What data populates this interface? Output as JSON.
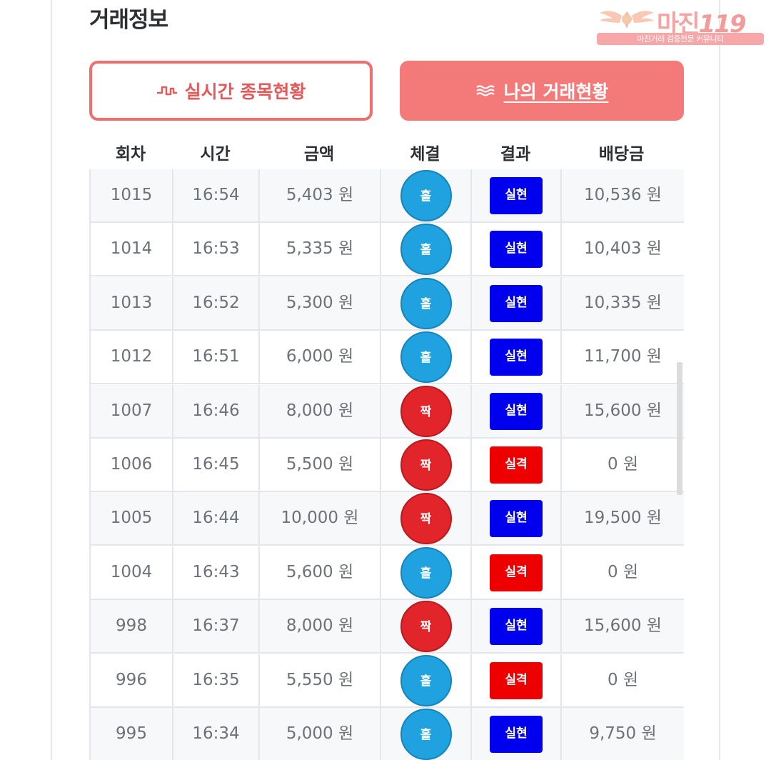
{
  "page": {
    "title": "거래정보"
  },
  "logo": {
    "brand_text": "마진",
    "brand_number": "119",
    "tagline": "마진거래 검증전문 커뮤니티"
  },
  "tabs": {
    "live": {
      "label": "실시간 종목현황",
      "icon": "pulse-icon",
      "active": false
    },
    "mine": {
      "label": "나의 거래현황",
      "icon": "waves-icon",
      "active": true
    }
  },
  "colors": {
    "accent": "#f47a7a",
    "odd_ball": "#1fa2df",
    "even_ball": "#e2252b",
    "win_badge": "#0000ee",
    "lose_badge": "#ee0000"
  },
  "table": {
    "headers": [
      "회차",
      "시간",
      "금액",
      "체결",
      "결과",
      "배당금"
    ],
    "rows": [
      {
        "round": "1015",
        "time": "16:54",
        "amount": "5,403 원",
        "pick": "홀",
        "result": "실현",
        "payout": "10,536 원"
      },
      {
        "round": "1014",
        "time": "16:53",
        "amount": "5,335 원",
        "pick": "홀",
        "result": "실현",
        "payout": "10,403 원"
      },
      {
        "round": "1013",
        "time": "16:52",
        "amount": "5,300 원",
        "pick": "홀",
        "result": "실현",
        "payout": "10,335 원"
      },
      {
        "round": "1012",
        "time": "16:51",
        "amount": "6,000 원",
        "pick": "홀",
        "result": "실현",
        "payout": "11,700 원"
      },
      {
        "round": "1007",
        "time": "16:46",
        "amount": "8,000 원",
        "pick": "짝",
        "result": "실현",
        "payout": "15,600 원"
      },
      {
        "round": "1006",
        "time": "16:45",
        "amount": "5,500 원",
        "pick": "짝",
        "result": "실격",
        "payout": "0 원"
      },
      {
        "round": "1005",
        "time": "16:44",
        "amount": "10,000 원",
        "pick": "짝",
        "result": "실현",
        "payout": "19,500 원"
      },
      {
        "round": "1004",
        "time": "16:43",
        "amount": "5,600 원",
        "pick": "홀",
        "result": "실격",
        "payout": "0 원"
      },
      {
        "round": "998",
        "time": "16:37",
        "amount": "8,000 원",
        "pick": "짝",
        "result": "실현",
        "payout": "15,600 원"
      },
      {
        "round": "996",
        "time": "16:35",
        "amount": "5,550 원",
        "pick": "홀",
        "result": "실격",
        "payout": "0 원"
      },
      {
        "round": "995",
        "time": "16:34",
        "amount": "5,000 원",
        "pick": "홀",
        "result": "실현",
        "payout": "9,750 원"
      }
    ]
  }
}
